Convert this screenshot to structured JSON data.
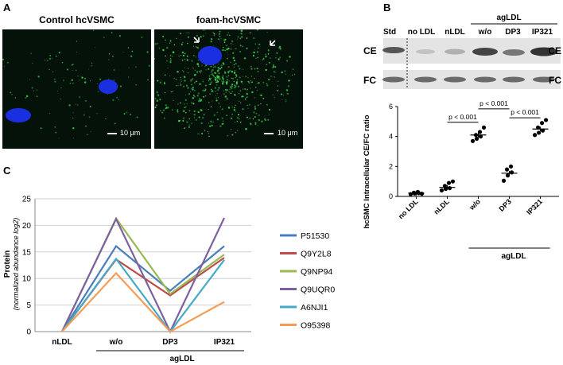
{
  "panels": {
    "a": "A",
    "b": "B",
    "c": "C"
  },
  "panel_a": {
    "left_title": "Control hcVSMC",
    "right_title": "foam-hcVSMC",
    "scale_left": "10 μm",
    "scale_right": "10 μm",
    "colors": {
      "nucleus": "#1830e6",
      "lipid": "#3cd24a",
      "background": "#04120a"
    }
  },
  "panel_b": {
    "blot_lanes": [
      "Std",
      "no LDL",
      "nLDL",
      "w/o",
      "DP3",
      "IP321"
    ],
    "blot_group_label": "agLDL",
    "blot_rows": [
      "CE",
      "FC"
    ],
    "chart_data": {
      "type": "scatter",
      "title": "",
      "categories": [
        "no LDL",
        "nLDL",
        "w/o",
        "DP3",
        "IP321"
      ],
      "group_label": "agLDL",
      "ylabel": "hcSMC Intracellular CE/FC ratio",
      "ylim": [
        0,
        6
      ],
      "yticks": [
        "0",
        "2",
        "4",
        "6"
      ],
      "means": [
        0.22,
        0.6,
        4.1,
        1.55,
        4.5
      ],
      "points": [
        [
          0.15,
          0.2,
          0.22,
          0.25,
          0.3,
          0.18
        ],
        [
          0.4,
          0.5,
          0.55,
          0.7,
          0.9,
          1.0
        ],
        [
          3.7,
          3.85,
          4.0,
          4.1,
          4.3,
          4.6
        ],
        [
          1.05,
          1.4,
          1.6,
          1.8,
          2.0
        ],
        [
          4.1,
          4.25,
          4.4,
          4.6,
          4.9,
          5.1
        ]
      ],
      "annotations": [
        "p < 0.001",
        "p < 0.001",
        "p < 0.001"
      ]
    }
  },
  "panel_c": {
    "chart_data": {
      "type": "line",
      "categories": [
        "nLDL",
        "w/o",
        "DP3",
        "IP321"
      ],
      "group_label": "agLDL",
      "ylabel": "Protein",
      "ylabel_sub": "(normalized abundance log2)",
      "ylim": [
        0,
        25
      ],
      "yticks": [
        "0",
        "5",
        "10",
        "15",
        "20",
        "25"
      ],
      "grid": true,
      "legend_position": "right",
      "series": [
        {
          "name": "P51530",
          "color": "#4a7ebb",
          "values": [
            0,
            16.1,
            7.7,
            16.1
          ]
        },
        {
          "name": "Q9Y2L8",
          "color": "#be4b48",
          "values": [
            0,
            13.6,
            6.8,
            13.9
          ]
        },
        {
          "name": "Q9NP94",
          "color": "#98b954",
          "values": [
            0,
            21.3,
            7.1,
            14.5
          ]
        },
        {
          "name": "Q9UQR0",
          "color": "#7d60a0",
          "values": [
            0,
            21.2,
            0,
            21.4
          ]
        },
        {
          "name": "A6NJI1",
          "color": "#46aac5",
          "values": [
            0,
            13.7,
            0,
            13.5
          ]
        },
        {
          "name": "O95398",
          "color": "#f59d56",
          "values": [
            0,
            11.0,
            0,
            5.6
          ]
        }
      ]
    }
  }
}
